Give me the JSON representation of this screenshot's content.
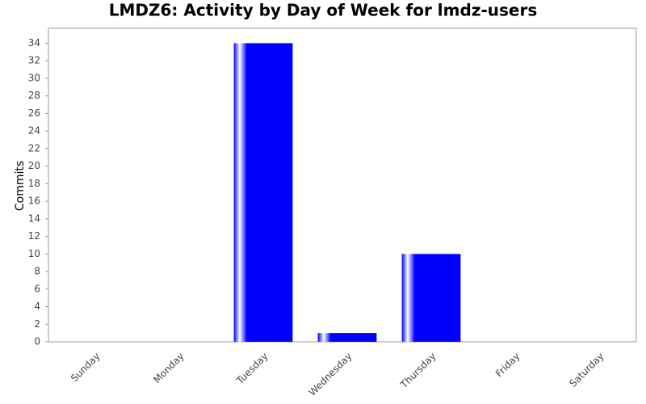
{
  "chart_data": {
    "type": "bar",
    "title": "LMDZ6: Activity by Day of Week for lmdz-users",
    "y_label": "Commits",
    "categories": [
      "Sunday",
      "Monday",
      "Tuesday",
      "Wednesday",
      "Thursday",
      "Friday",
      "Saturday"
    ],
    "values": [
      0,
      0,
      34,
      1,
      10,
      0,
      0
    ],
    "color": "#0000ff",
    "ylim": [
      0,
      35.7
    ],
    "yticks": [
      0,
      2,
      4,
      6,
      8,
      10,
      12,
      14,
      16,
      18,
      20,
      22,
      24,
      26,
      28,
      30,
      32,
      34
    ],
    "grid": false
  }
}
